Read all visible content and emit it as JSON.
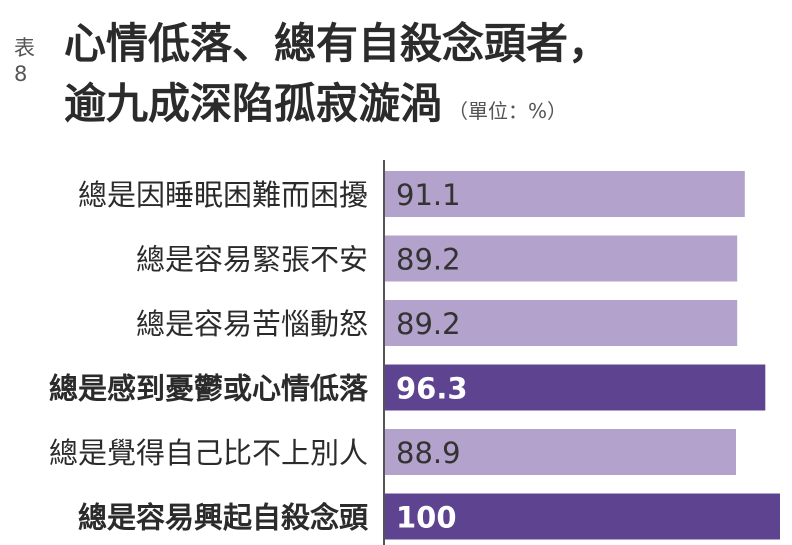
{
  "header": {
    "table_number": "表8",
    "title_line1": "心情低落、總有自殺念頭者，",
    "title_line2": "逾九成深陷孤寂漩渦",
    "unit": "（單位：%）"
  },
  "colors": {
    "normal_bar": "#b3a2cb",
    "highlight_bar": "#5e4490",
    "normal_value_text": "#333333",
    "highlight_value_text": "#ffffff",
    "axis": "#555555"
  },
  "chart_data": {
    "type": "bar",
    "orientation": "horizontal",
    "categories": [
      "總是因睡眠困難而困擾",
      "總是容易緊張不安",
      "總是容易苦惱動怒",
      "總是感到憂鬱或心情低落",
      "總是覺得自己比不上別人",
      "總是容易興起自殺念頭"
    ],
    "value_labels": [
      "91.1",
      "89.2",
      "89.2",
      "96.3",
      "88.9",
      "100"
    ],
    "values": [
      91.1,
      89.2,
      89.2,
      96.3,
      88.9,
      100
    ],
    "highlighted": [
      false,
      false,
      false,
      true,
      false,
      true
    ],
    "xlim": [
      0,
      100
    ],
    "grid": false,
    "legend": "none"
  }
}
